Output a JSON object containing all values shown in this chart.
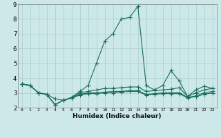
{
  "background_color": "#cce8e8",
  "plot_bg_color": "#cce8e8",
  "line_color": "#1a6b5a",
  "grid_color": "#aacccc",
  "xlabel": "Humidex (Indice chaleur)",
  "xlim": [
    -0.5,
    23.5
  ],
  "ylim": [
    2,
    9
  ],
  "xtick_labels": [
    "0",
    "1",
    "2",
    "3",
    "4",
    "5",
    "6",
    "7",
    "8",
    "9",
    "1011",
    "1213",
    "1415",
    "1617",
    "1819",
    "2021",
    "2223"
  ],
  "yticks": [
    2,
    3,
    4,
    5,
    6,
    7,
    8,
    9
  ],
  "series": [
    [
      3.6,
      3.5,
      3.0,
      2.9,
      2.6,
      2.5,
      2.7,
      3.1,
      3.5,
      5.0,
      6.5,
      7.0,
      8.0,
      8.1,
      8.85,
      3.5,
      3.2,
      3.5,
      4.5,
      3.8,
      2.75,
      3.2,
      3.45,
      3.3
    ],
    [
      3.6,
      3.5,
      3.0,
      2.9,
      2.2,
      2.5,
      2.65,
      3.0,
      3.1,
      3.2,
      3.3,
      3.3,
      3.35,
      3.4,
      3.4,
      3.1,
      3.15,
      3.2,
      3.25,
      3.35,
      2.75,
      3.0,
      3.2,
      3.3
    ],
    [
      3.6,
      3.5,
      3.0,
      2.9,
      2.2,
      2.5,
      2.65,
      2.9,
      3.0,
      3.0,
      3.05,
      3.1,
      3.1,
      3.15,
      3.15,
      2.9,
      2.95,
      3.0,
      3.0,
      3.0,
      2.7,
      2.8,
      3.0,
      3.1
    ],
    [
      3.6,
      3.5,
      3.0,
      2.9,
      2.2,
      2.5,
      2.65,
      2.85,
      2.95,
      2.95,
      3.0,
      3.0,
      3.05,
      3.1,
      3.1,
      2.85,
      2.9,
      2.95,
      2.95,
      2.95,
      2.65,
      2.75,
      2.9,
      3.0
    ]
  ],
  "marker": "+",
  "markersize": 4,
  "linewidth": 0.8,
  "tick_fontsize": 5.5,
  "xlabel_fontsize": 6.5
}
